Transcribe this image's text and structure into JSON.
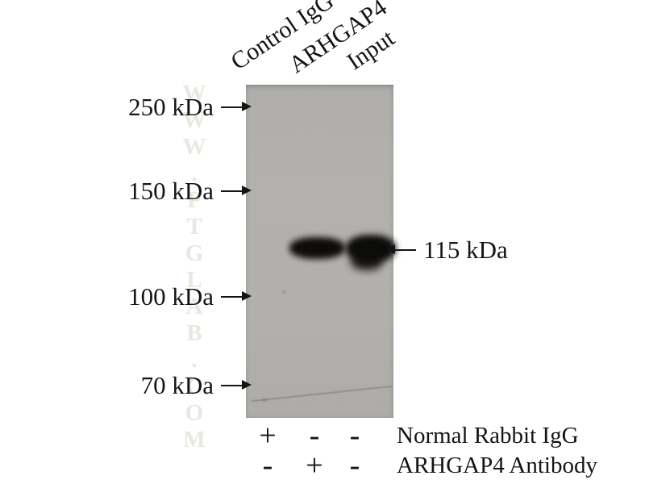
{
  "figure": {
    "type": "western-blot-immunoprecipitation",
    "watermark": "WWW.PTGLAB.COM",
    "lanes": [
      {
        "label": "Control IgG"
      },
      {
        "label": "ARHGAP4"
      },
      {
        "label": "Input"
      }
    ],
    "mw_markers": [
      {
        "label": "250 kDa"
      },
      {
        "label": "150 kDa"
      },
      {
        "label": "100 kDa"
      },
      {
        "label": "70 kDa"
      }
    ],
    "band_label": "115 kDa",
    "bands": [
      {
        "lane": "ARHGAP4",
        "mw": "115 kDa",
        "intensity": "strong"
      },
      {
        "lane": "Input",
        "mw": "115 kDa",
        "intensity": "strong"
      }
    ],
    "conditions": [
      {
        "col1": "+",
        "col2": "-",
        "col3": "-",
        "label": "Normal Rabbit IgG"
      },
      {
        "col1": "-",
        "col2": "+",
        "col3": "-",
        "label": "ARHGAP4 Antibody"
      }
    ],
    "colors": {
      "membrane": "#b2b0ad",
      "band": "#0d0c0a",
      "text": "#141414",
      "watermark": "#e8e6de"
    }
  }
}
